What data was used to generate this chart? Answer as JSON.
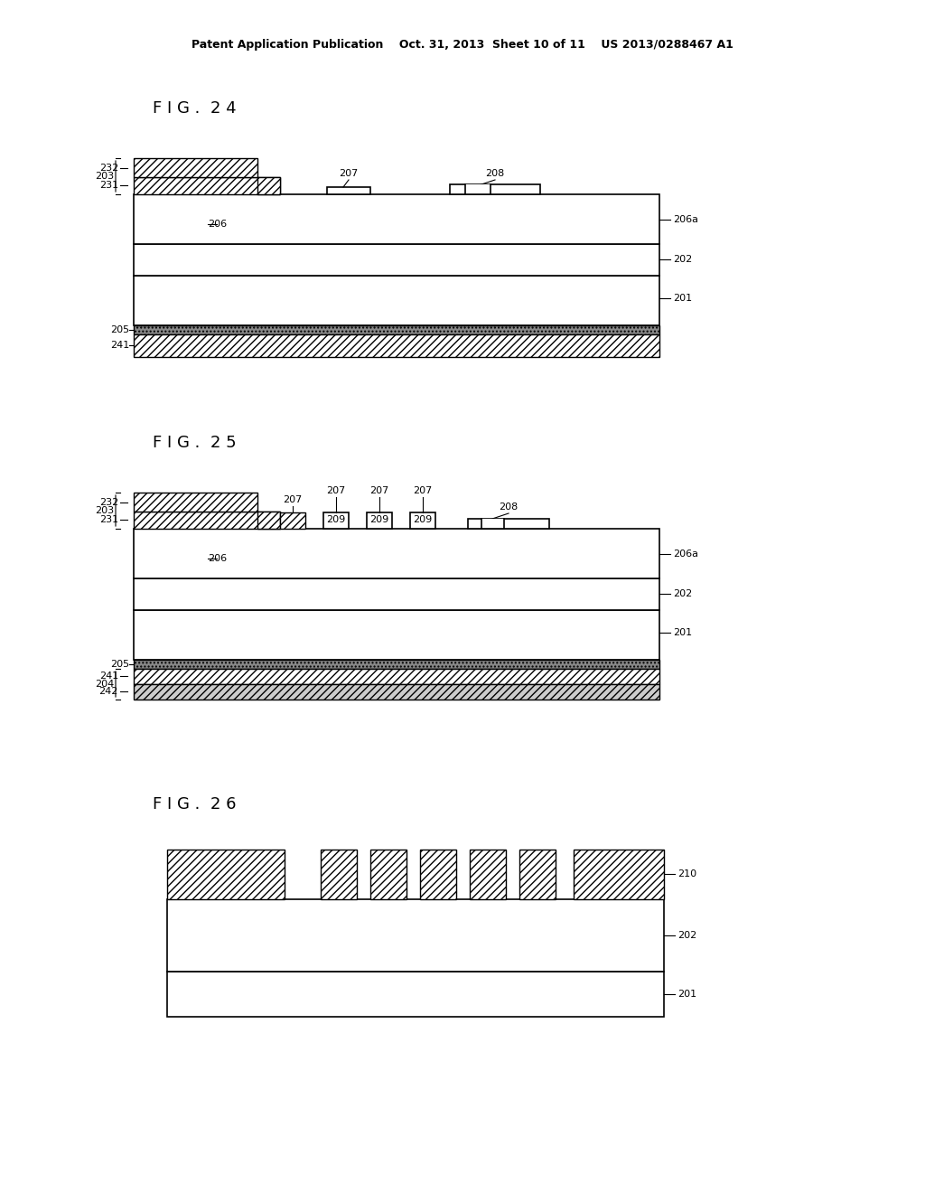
{
  "bg_color": "#ffffff",
  "header_text": "Patent Application Publication    Oct. 31, 2013  Sheet 10 of 11    US 2013/0288467 A1",
  "fig24_label": "F I G .  2 4",
  "fig25_label": "F I G .  2 5",
  "fig26_label": "F I G .  2 6"
}
